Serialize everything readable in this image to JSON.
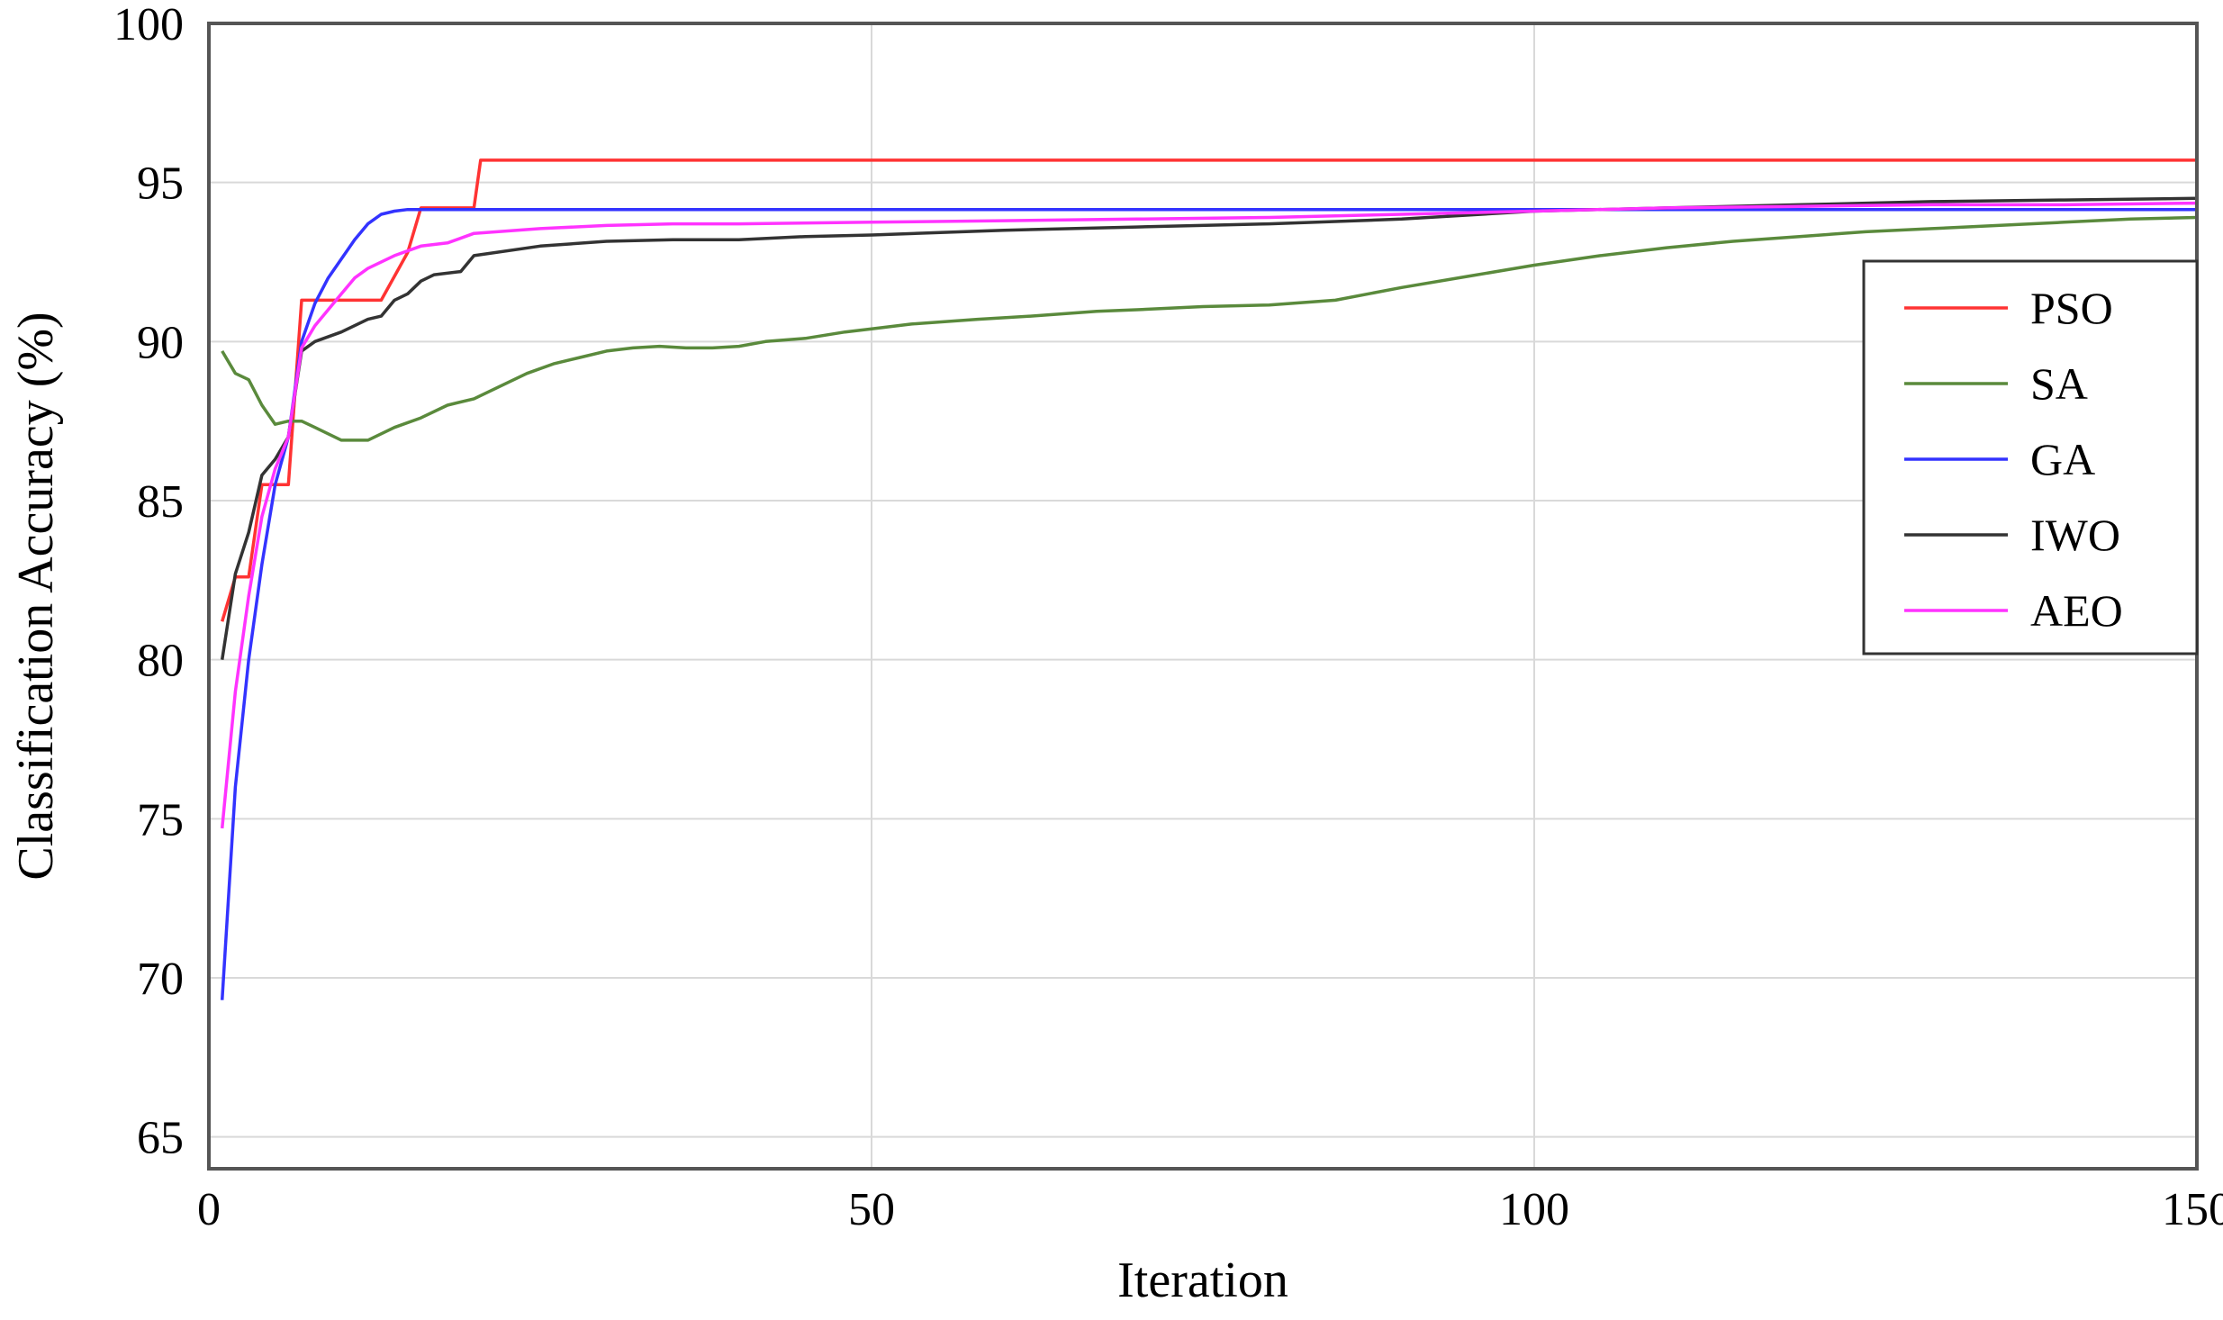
{
  "chart_data": {
    "type": "line",
    "title": "",
    "xlabel": "Iteration",
    "ylabel": "Classification Accuracy (%)",
    "xlim": [
      0,
      150
    ],
    "ylim": [
      64,
      100
    ],
    "xticks": [
      0,
      50,
      100,
      150
    ],
    "yticks": [
      65,
      70,
      75,
      80,
      85,
      90,
      95,
      100
    ],
    "grid": true,
    "legend_position": "right",
    "series": [
      {
        "name": "PSO",
        "color": "#ff3333",
        "points": [
          [
            1,
            81.2
          ],
          [
            2,
            82.6
          ],
          [
            3,
            82.6
          ],
          [
            4,
            85.5
          ],
          [
            5,
            85.5
          ],
          [
            6,
            85.5
          ],
          [
            6,
            85.5
          ],
          [
            7,
            91.3
          ],
          [
            13,
            91.3
          ],
          [
            15,
            92.8
          ],
          [
            16,
            94.2
          ],
          [
            20,
            94.2
          ],
          [
            20.5,
            95.7
          ],
          [
            150,
            95.7
          ]
        ]
      },
      {
        "name": "SA",
        "color": "#5a8a3c",
        "points": [
          [
            1,
            89.7
          ],
          [
            2,
            89.0
          ],
          [
            3,
            88.8
          ],
          [
            4,
            88.0
          ],
          [
            5,
            87.4
          ],
          [
            6,
            87.5
          ],
          [
            7,
            87.5
          ],
          [
            8,
            87.3
          ],
          [
            10,
            86.9
          ],
          [
            12,
            86.9
          ],
          [
            14,
            87.3
          ],
          [
            16,
            87.6
          ],
          [
            18,
            88.0
          ],
          [
            20,
            88.2
          ],
          [
            22,
            88.6
          ],
          [
            24,
            89.0
          ],
          [
            26,
            89.3
          ],
          [
            28,
            89.5
          ],
          [
            30,
            89.7
          ],
          [
            32,
            89.8
          ],
          [
            34,
            89.85
          ],
          [
            36,
            89.8
          ],
          [
            38,
            89.8
          ],
          [
            40,
            89.85
          ],
          [
            42,
            90.0
          ],
          [
            45,
            90.1
          ],
          [
            48,
            90.3
          ],
          [
            50,
            90.4
          ],
          [
            53,
            90.55
          ],
          [
            58,
            90.7
          ],
          [
            62,
            90.8
          ],
          [
            67,
            90.95
          ],
          [
            70,
            91.0
          ],
          [
            75,
            91.1
          ],
          [
            80,
            91.15
          ],
          [
            85,
            91.3
          ],
          [
            90,
            91.7
          ],
          [
            95,
            92.05
          ],
          [
            100,
            92.4
          ],
          [
            105,
            92.7
          ],
          [
            110,
            92.95
          ],
          [
            115,
            93.15
          ],
          [
            120,
            93.3
          ],
          [
            125,
            93.45
          ],
          [
            130,
            93.55
          ],
          [
            135,
            93.65
          ],
          [
            140,
            93.75
          ],
          [
            145,
            93.85
          ],
          [
            150,
            93.9
          ]
        ]
      },
      {
        "name": "GA",
        "color": "#3333ff",
        "points": [
          [
            1,
            69.3
          ],
          [
            2,
            76.0
          ],
          [
            3,
            80.0
          ],
          [
            4,
            83.0
          ],
          [
            5,
            85.5
          ],
          [
            6,
            87.0
          ],
          [
            7,
            90.0
          ],
          [
            8,
            91.2
          ],
          [
            9,
            92.0
          ],
          [
            10,
            92.6
          ],
          [
            11,
            93.2
          ],
          [
            12,
            93.7
          ],
          [
            13,
            94.0
          ],
          [
            14,
            94.1
          ],
          [
            15,
            94.15
          ],
          [
            20,
            94.15
          ],
          [
            50,
            94.15
          ],
          [
            100,
            94.15
          ],
          [
            150,
            94.15
          ]
        ]
      },
      {
        "name": "IWO",
        "color": "#333333",
        "points": [
          [
            1,
            80.0
          ],
          [
            2,
            82.7
          ],
          [
            3,
            84.0
          ],
          [
            4,
            85.8
          ],
          [
            5,
            86.3
          ],
          [
            6,
            87.0
          ],
          [
            7,
            89.7
          ],
          [
            8,
            90.0
          ],
          [
            10,
            90.3
          ],
          [
            12,
            90.7
          ],
          [
            13,
            90.8
          ],
          [
            14,
            91.3
          ],
          [
            15,
            91.5
          ],
          [
            16,
            91.9
          ],
          [
            17,
            92.1
          ],
          [
            19,
            92.2
          ],
          [
            20,
            92.7
          ],
          [
            25,
            93.0
          ],
          [
            30,
            93.15
          ],
          [
            35,
            93.2
          ],
          [
            40,
            93.2
          ],
          [
            45,
            93.3
          ],
          [
            50,
            93.35
          ],
          [
            60,
            93.5
          ],
          [
            70,
            93.6
          ],
          [
            80,
            93.7
          ],
          [
            90,
            93.85
          ],
          [
            100,
            94.1
          ],
          [
            110,
            94.2
          ],
          [
            120,
            94.3
          ],
          [
            130,
            94.4
          ],
          [
            140,
            94.45
          ],
          [
            150,
            94.5
          ]
        ]
      },
      {
        "name": "AEO",
        "color": "#ff33ff",
        "points": [
          [
            1,
            74.7
          ],
          [
            2,
            79.0
          ],
          [
            3,
            82.0
          ],
          [
            4,
            84.5
          ],
          [
            5,
            86.0
          ],
          [
            6,
            87.0
          ],
          [
            7,
            89.8
          ],
          [
            8,
            90.5
          ],
          [
            9,
            91.0
          ],
          [
            10,
            91.5
          ],
          [
            11,
            92.0
          ],
          [
            12,
            92.3
          ],
          [
            14,
            92.7
          ],
          [
            16,
            93.0
          ],
          [
            18,
            93.1
          ],
          [
            20,
            93.4
          ],
          [
            25,
            93.55
          ],
          [
            30,
            93.65
          ],
          [
            35,
            93.7
          ],
          [
            40,
            93.7
          ],
          [
            50,
            93.75
          ],
          [
            60,
            93.8
          ],
          [
            70,
            93.85
          ],
          [
            80,
            93.9
          ],
          [
            90,
            94.0
          ],
          [
            100,
            94.1
          ],
          [
            110,
            94.2
          ],
          [
            120,
            94.25
          ],
          [
            130,
            94.3
          ],
          [
            140,
            94.3
          ],
          [
            150,
            94.35
          ]
        ]
      }
    ]
  }
}
